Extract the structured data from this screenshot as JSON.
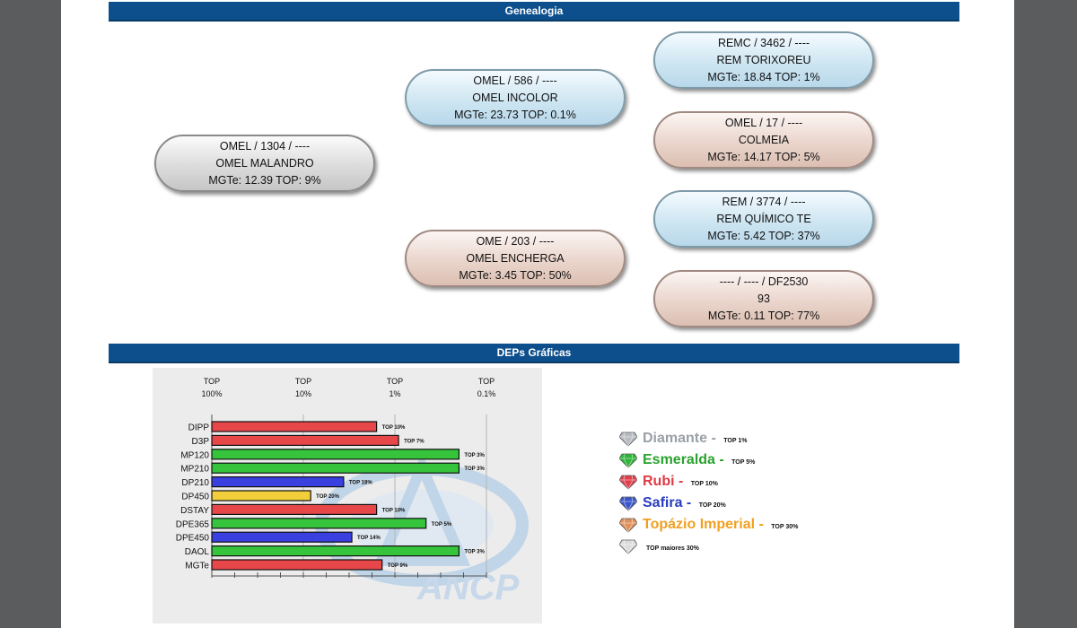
{
  "sections": {
    "genealogia": "Genealogia",
    "deps": "DEPs Gráficas"
  },
  "pedigree": {
    "sire": {
      "line1": "OMEL / 1304 / ----",
      "line2": "OMEL MALANDRO",
      "line3": "MGTe: 12.39   TOP: 9%"
    },
    "sire_sire": {
      "line1": "OMEL / 586 / ----",
      "line2": "OMEL INCOLOR",
      "line3": "MGTe: 23.73   TOP: 0.1%"
    },
    "sire_dam": {
      "line1": "OME / 203 / ----",
      "line2": "OMEL ENCHERGA",
      "line3": "MGTe: 3.45   TOP: 50%"
    },
    "ss_sire": {
      "line1": "REMC / 3462 / ----",
      "line2": "REM TORIXOREU",
      "line3": "MGTe: 18.84   TOP: 1%"
    },
    "ss_dam": {
      "line1": "OMEL / 17 / ----",
      "line2": "COLMEIA",
      "line3": "MGTe: 14.17   TOP: 5%"
    },
    "sd_sire": {
      "line1": "REM / 3774 / ----",
      "line2": "REM QUÍMICO TE",
      "line3": "MGTe: 5.42   TOP: 37%"
    },
    "sd_dam": {
      "line1": "---- / ---- / DF2530",
      "line2": "93",
      "line3": "MGTe: 0.11   TOP: 77%"
    }
  },
  "chart_data": {
    "type": "bar",
    "orientation": "horizontal",
    "x_ticks": [
      {
        "top": "TOP",
        "bottom": "100%"
      },
      {
        "top": "TOP",
        "bottom": "10%"
      },
      {
        "top": "TOP",
        "bottom": "1%"
      },
      {
        "top": "TOP",
        "bottom": "0.1%"
      }
    ],
    "categories": [
      "DIPP",
      "D3P",
      "MP120",
      "MP210",
      "DP210",
      "DP450",
      "DSTAY",
      "DPE365",
      "DPE450",
      "DAOL",
      "MGTe"
    ],
    "values": [
      0.6,
      0.68,
      0.9,
      0.9,
      0.48,
      0.36,
      0.6,
      0.78,
      0.51,
      0.9,
      0.62
    ],
    "labels": [
      "TOP 10%",
      "TOP 7%",
      "TOP 3%",
      "TOP 3%",
      "TOP 18%",
      "TOP 20%",
      "TOP 10%",
      "TOP 5%",
      "TOP 14%",
      "TOP 3%",
      "TOP 9%"
    ],
    "colors": [
      "#e8474a",
      "#e8474a",
      "#35c43c",
      "#35c43c",
      "#3a3fe0",
      "#f2cf3a",
      "#e8474a",
      "#35c43c",
      "#3a3fe0",
      "#35c43c",
      "#e8474a"
    ],
    "xlim": [
      0,
      1
    ],
    "grid": true,
    "title": "",
    "xlabel": "",
    "ylabel": ""
  },
  "legend": [
    {
      "name": "Diamante",
      "dash": " - ",
      "top": "TOP 1%",
      "color": "#9aa0a6",
      "gem": "#b8bcc2"
    },
    {
      "name": "Esmeralda",
      "dash": " - ",
      "top": "TOP 5%",
      "color": "#2aa32e",
      "gem": "#2fb53a"
    },
    {
      "name": "Rubi",
      "dash": " - ",
      "top": "TOP 10%",
      "color": "#e03a44",
      "gem": "#e0404c"
    },
    {
      "name": "Safira",
      "dash": " - ",
      "top": "TOP 20%",
      "color": "#2a3cc0",
      "gem": "#3a56c8"
    },
    {
      "name": "Topázio Imperial",
      "dash": " - ",
      "top": "TOP 30%",
      "color": "#f0a020",
      "gem": "#e0905a"
    },
    {
      "name": "",
      "dash": "",
      "top": "TOP maiores 30%",
      "color": "#111111",
      "gem": "#dcdcdc"
    }
  ]
}
